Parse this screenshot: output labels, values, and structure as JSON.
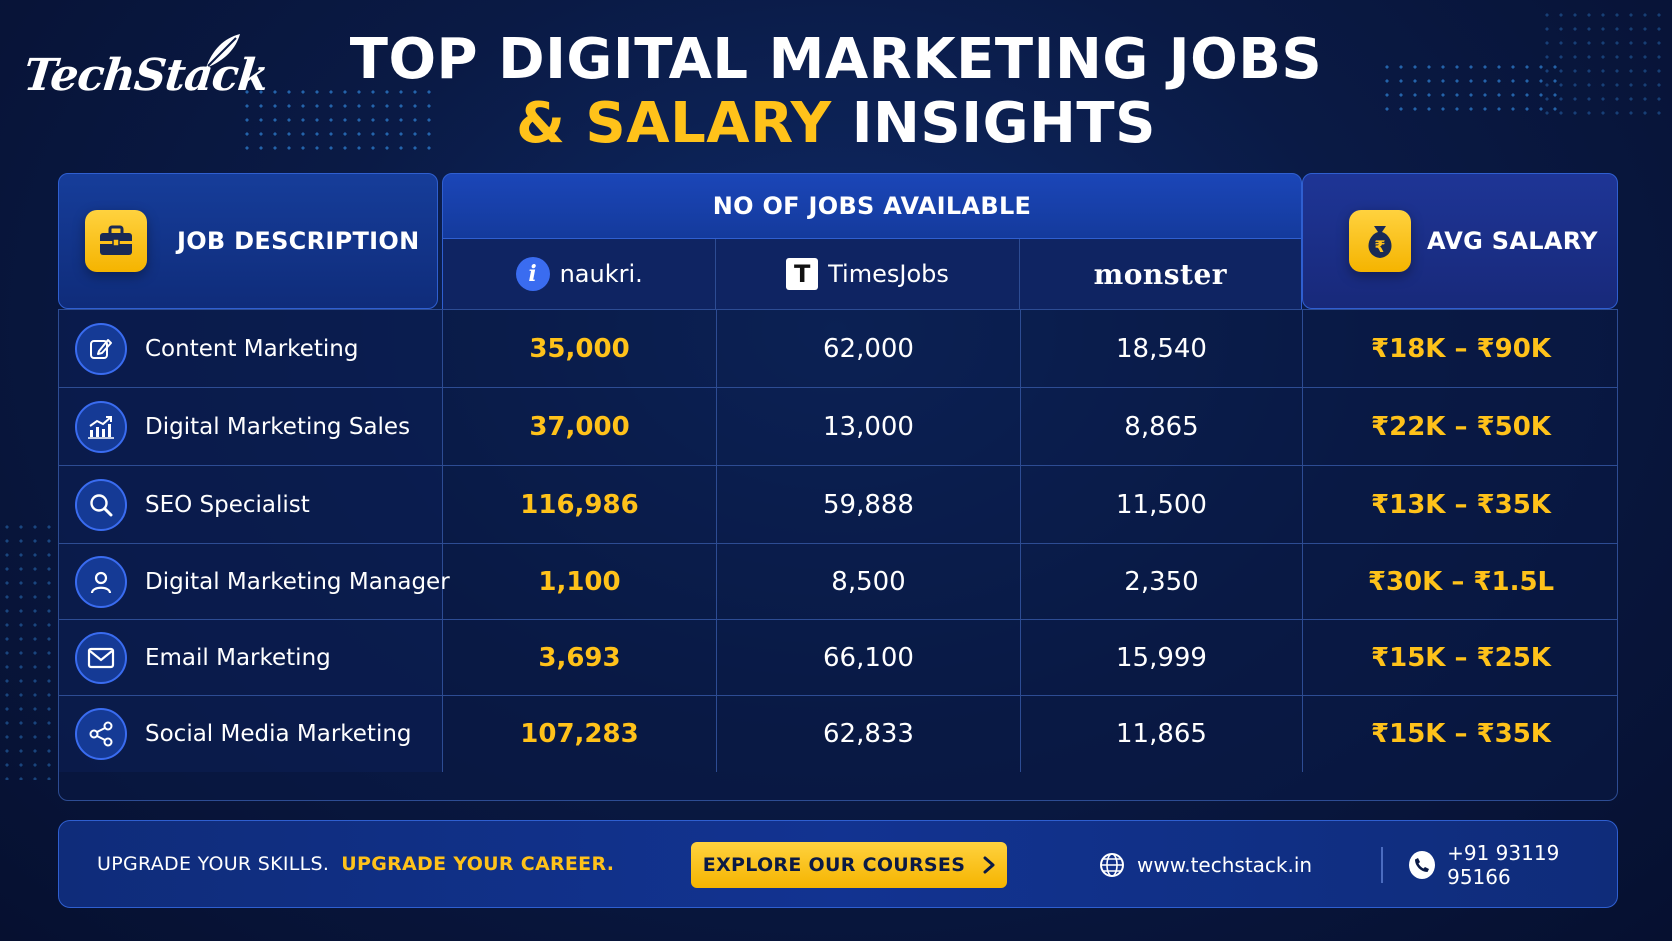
{
  "brand": {
    "logo_text": "TechStack"
  },
  "title": {
    "line1": "TOP DIGITAL MARKETING JOBS",
    "line2_highlight": "& SALARY",
    "line2_rest": " INSIGHTS"
  },
  "table": {
    "job_header": "JOB DESCRIPTION",
    "jobs_header": "NO OF JOBS AVAILABLE",
    "salary_header": "AVG SALARY",
    "sources": {
      "naukri": {
        "badge": "i",
        "label": "naukri."
      },
      "timesjobs": {
        "badge": "T",
        "label": "TimesJobs"
      },
      "monster": {
        "label": "monster"
      }
    },
    "rows": [
      {
        "job": "Content Marketing",
        "icon": "edit-icon",
        "naukri": "35,000",
        "timesjobs": "62,000",
        "monster": "18,540",
        "salary": "₹18K – ₹90K"
      },
      {
        "job": "Digital Marketing Sales",
        "icon": "chart-growth-icon",
        "naukri": "37,000",
        "timesjobs": "13,000",
        "monster": "8,865",
        "salary": "₹22K – ₹50K"
      },
      {
        "job": "SEO Specialist",
        "icon": "search-icon",
        "naukri": "116,986",
        "timesjobs": "59,888",
        "monster": "11,500",
        "salary": "₹13K – ₹35K"
      },
      {
        "job": "Digital Marketing Manager",
        "icon": "user-icon",
        "naukri": "1,100",
        "timesjobs": "8,500",
        "monster": "2,350",
        "salary": "₹30K – ₹1.5L"
      },
      {
        "job": "Email Marketing",
        "icon": "mail-icon",
        "naukri": "3,693",
        "timesjobs": "66,100",
        "monster": "15,999",
        "salary": "₹15K – ₹25K"
      },
      {
        "job": "Social Media Marketing",
        "icon": "share-icon",
        "naukri": "107,283",
        "timesjobs": "62,833",
        "monster": "11,865",
        "salary": "₹15K – ₹35K"
      }
    ]
  },
  "footer": {
    "tagline_white": "UPGRADE YOUR SKILLS.",
    "tagline_yellow": "UPGRADE YOUR CAREER.",
    "cta_label": "EXPLORE OUR COURSES",
    "website": "www.techstack.in",
    "phone": "+91 93119 95166"
  },
  "colors": {
    "accent": "#ffc21a",
    "background": "#0a1a45",
    "border": "#2f5fd0"
  }
}
